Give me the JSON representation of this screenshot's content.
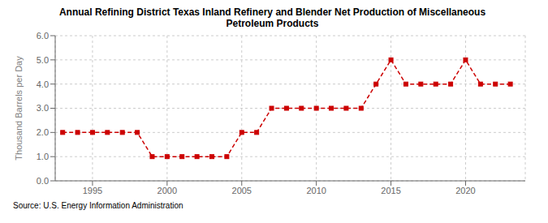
{
  "chart_data": {
    "type": "line",
    "title": "Annual Refining District Texas Inland Refinery and Blender Net Production of Miscellaneous\nPetroleum Products",
    "ylabel": "Thousand Barrels per Day",
    "annotation": "Source: U.S. Energy Information Administration",
    "x": [
      1993,
      1994,
      1995,
      1996,
      1997,
      1998,
      1999,
      2000,
      2001,
      2002,
      2003,
      2004,
      2005,
      2006,
      2007,
      2008,
      2009,
      2010,
      2011,
      2012,
      2013,
      2014,
      2015,
      2016,
      2017,
      2018,
      2019,
      2020,
      2021,
      2022,
      2023
    ],
    "values": [
      2.0,
      2.0,
      2.0,
      2.0,
      2.0,
      2.0,
      1.0,
      1.0,
      1.0,
      1.0,
      1.0,
      1.0,
      2.0,
      2.0,
      3.0,
      3.0,
      3.0,
      3.0,
      3.0,
      3.0,
      3.0,
      4.0,
      5.0,
      4.0,
      4.0,
      4.0,
      4.0,
      5.0,
      4.0,
      4.0,
      4.0
    ],
    "color": "#cc0000",
    "line_style": "dashed",
    "marker": "square",
    "grid": true,
    "xlim": [
      1992.5,
      2024.0
    ],
    "xticks": [
      1995,
      2000,
      2005,
      2010,
      2015,
      2020
    ],
    "ylim": [
      0.0,
      6.0
    ],
    "yticks": [
      {
        "value": 0.0,
        "label": "0.0"
      },
      {
        "value": 1.0,
        "label": "1.0"
      },
      {
        "value": 2.0,
        "label": "2.0"
      },
      {
        "value": 3.0,
        "label": "3.0"
      },
      {
        "value": 4.0,
        "label": "4.0"
      },
      {
        "value": 5.0,
        "label": "5.0"
      },
      {
        "value": 6.0,
        "label": "6.0"
      }
    ]
  }
}
